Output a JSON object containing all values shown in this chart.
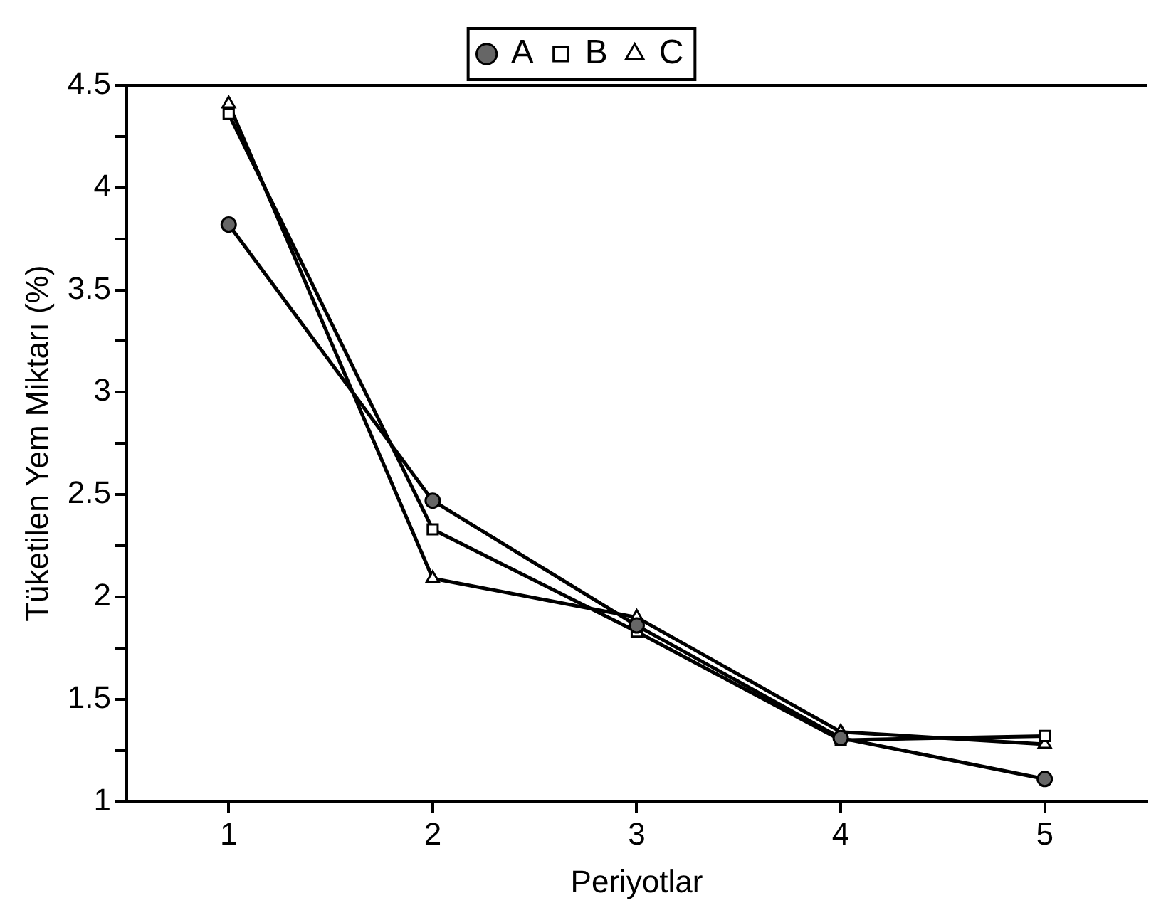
{
  "chart_data": {
    "type": "line",
    "xlabel": "Periyotlar",
    "ylabel": "Tüketilen Yem Miktarı (%)",
    "x": [
      1,
      2,
      3,
      4,
      5
    ],
    "series": [
      {
        "name": "A",
        "color": "#000000",
        "marker": "circle",
        "values": [
          3.82,
          2.47,
          1.86,
          1.31,
          1.11
        ]
      },
      {
        "name": "B",
        "color": "#000000",
        "marker": "square",
        "values": [
          4.36,
          2.33,
          1.83,
          1.3,
          1.32
        ]
      },
      {
        "name": "C",
        "color": "#000000",
        "marker": "triangle",
        "values": [
          4.41,
          2.09,
          1.9,
          1.34,
          1.28
        ]
      }
    ],
    "xlim": [
      0.5,
      5.5
    ],
    "xticks": [
      1,
      2,
      3,
      4,
      5
    ],
    "ylim": [
      1,
      4.5
    ],
    "yticks": [
      1,
      {
        "value": 1.25,
        "label": null
      },
      1.5,
      {
        "value": 1.75,
        "label": null
      },
      2,
      {
        "value": 2.25,
        "label": null
      },
      2.5,
      {
        "value": 2.75,
        "label": null
      },
      3,
      {
        "value": 3.25,
        "label": null
      },
      3.5,
      {
        "value": 3.75,
        "label": null
      },
      4,
      {
        "value": 4.25,
        "label": null
      },
      4.5
    ],
    "grid": false,
    "legend": "top",
    "line_style": "solid"
  }
}
